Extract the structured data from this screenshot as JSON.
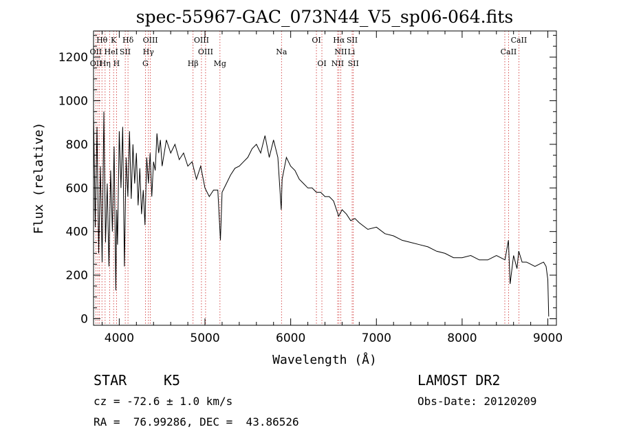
{
  "chart_data": {
    "type": "line",
    "title": "spec-55967-GAC_073N44_V5_sp06-064.fits",
    "xlabel": "Wavelength (Å)",
    "ylabel": "Flux (relative)",
    "xlim": [
      3700,
      9100
    ],
    "ylim": [
      -30,
      1320
    ],
    "xticks": [
      4000,
      5000,
      6000,
      7000,
      8000,
      9000
    ],
    "yticks": [
      0,
      200,
      400,
      600,
      800,
      1000,
      1200
    ],
    "grid": false,
    "series": [
      {
        "x": [
          3700,
          3720,
          3740,
          3760,
          3780,
          3800,
          3820,
          3840,
          3860,
          3880,
          3900,
          3920,
          3940,
          3960,
          3970,
          3980,
          4000,
          4020,
          4040,
          4060,
          4080,
          4100,
          4120,
          4140,
          4160,
          4180,
          4200,
          4220,
          4240,
          4260,
          4280,
          4300,
          4320,
          4340,
          4360,
          4380,
          4400,
          4420,
          4440,
          4460,
          4480,
          4500,
          4550,
          4600,
          4650,
          4700,
          4750,
          4800,
          4850,
          4900,
          4950,
          5000,
          5050,
          5100,
          5150,
          5180,
          5200,
          5250,
          5300,
          5350,
          5400,
          5450,
          5500,
          5550,
          5600,
          5650,
          5700,
          5750,
          5800,
          5850,
          5890,
          5900,
          5950,
          6000,
          6050,
          6100,
          6150,
          6200,
          6250,
          6300,
          6350,
          6400,
          6450,
          6500,
          6560,
          6600,
          6650,
          6700,
          6750,
          6800,
          6900,
          7000,
          7100,
          7200,
          7300,
          7400,
          7500,
          7600,
          7700,
          7800,
          7900,
          8000,
          8100,
          8200,
          8300,
          8400,
          8450,
          8500,
          8540,
          8560,
          8600,
          8640,
          8660,
          8700,
          8750,
          8800,
          8850,
          8900,
          8950,
          8980,
          9000,
          9010
        ],
        "y": [
          950,
          420,
          880,
          300,
          700,
          260,
          950,
          350,
          620,
          240,
          680,
          400,
          790,
          130,
          500,
          340,
          860,
          600,
          880,
          240,
          740,
          560,
          860,
          550,
          800,
          620,
          760,
          520,
          690,
          480,
          590,
          430,
          740,
          620,
          760,
          560,
          720,
          680,
          850,
          760,
          820,
          700,
          820,
          760,
          800,
          730,
          760,
          700,
          720,
          640,
          700,
          600,
          560,
          590,
          590,
          360,
          580,
          620,
          660,
          690,
          700,
          720,
          740,
          780,
          800,
          760,
          840,
          740,
          820,
          740,
          500,
          640,
          740,
          700,
          680,
          640,
          620,
          600,
          600,
          580,
          580,
          560,
          560,
          540,
          470,
          500,
          480,
          450,
          460,
          440,
          410,
          420,
          390,
          380,
          360,
          350,
          340,
          330,
          310,
          300,
          280,
          280,
          290,
          270,
          270,
          290,
          280,
          270,
          360,
          160,
          290,
          230,
          310,
          260,
          260,
          250,
          240,
          250,
          260,
          240,
          180,
          10
        ]
      }
    ],
    "spectral_lines": [
      {
        "label": "Hθ",
        "row": 1,
        "x": 3798
      },
      {
        "label": "K",
        "row": 1,
        "x": 3934
      },
      {
        "label": "Hδ",
        "row": 1,
        "x": 4102
      },
      {
        "label": "OIII",
        "row": 1,
        "x": 4363
      },
      {
        "label": "OIII",
        "row": 1,
        "x": 4959
      },
      {
        "label": "OI",
        "row": 1,
        "x": 6300
      },
      {
        "label": "Hα",
        "row": 1,
        "x": 6563
      },
      {
        "label": "SII",
        "row": 1,
        "x": 6717
      },
      {
        "label": "CaII",
        "row": 1,
        "x": 8662
      },
      {
        "label": "OII",
        "row": 2,
        "x": 3727
      },
      {
        "label": "He",
        "row": 2,
        "x": 3889
      },
      {
        "label": "I",
        "row": 2,
        "x": 3970
      },
      {
        "label": "SII",
        "row": 2,
        "x": 4069
      },
      {
        "label": "Hγ",
        "row": 2,
        "x": 4340
      },
      {
        "label": "OIII",
        "row": 2,
        "x": 5007
      },
      {
        "label": "Na",
        "row": 2,
        "x": 5893
      },
      {
        "label": "NII",
        "row": 2,
        "x": 6584
      },
      {
        "label": "Li",
        "row": 2,
        "x": 6708
      },
      {
        "label": "CaII",
        "row": 2,
        "x": 8542
      },
      {
        "label": "OII",
        "row": 3,
        "x": 3729
      },
      {
        "label": "Hη",
        "row": 3,
        "x": 3835
      },
      {
        "label": "H",
        "row": 3,
        "x": 3968
      },
      {
        "label": "G",
        "row": 3,
        "x": 4305
      },
      {
        "label": "Hβ",
        "row": 3,
        "x": 4861
      },
      {
        "label": "Mg",
        "row": 3,
        "x": 5175
      },
      {
        "label": "OI",
        "row": 3,
        "x": 6364
      },
      {
        "label": "NII",
        "row": 3,
        "x": 6548
      },
      {
        "label": "SII",
        "row": 3,
        "x": 6731
      }
    ],
    "line_markers": [
      3727,
      3750,
      3770,
      3798,
      3835,
      3889,
      3934,
      3968,
      4070,
      4102,
      4305,
      4340,
      4363,
      4861,
      4959,
      5007,
      5175,
      5893,
      6300,
      6364,
      6548,
      6563,
      6584,
      6717,
      6731,
      8498,
      8542,
      8662
    ]
  },
  "footer": {
    "object_class": "STAR",
    "subclass": "K5",
    "survey": "LAMOST DR2",
    "redshift": "cz = -72.6 ± 1.0 km/s",
    "obs_date": "Obs-Date: 20120209",
    "coords": "RA =  76.99286, DEC =  43.86526"
  }
}
